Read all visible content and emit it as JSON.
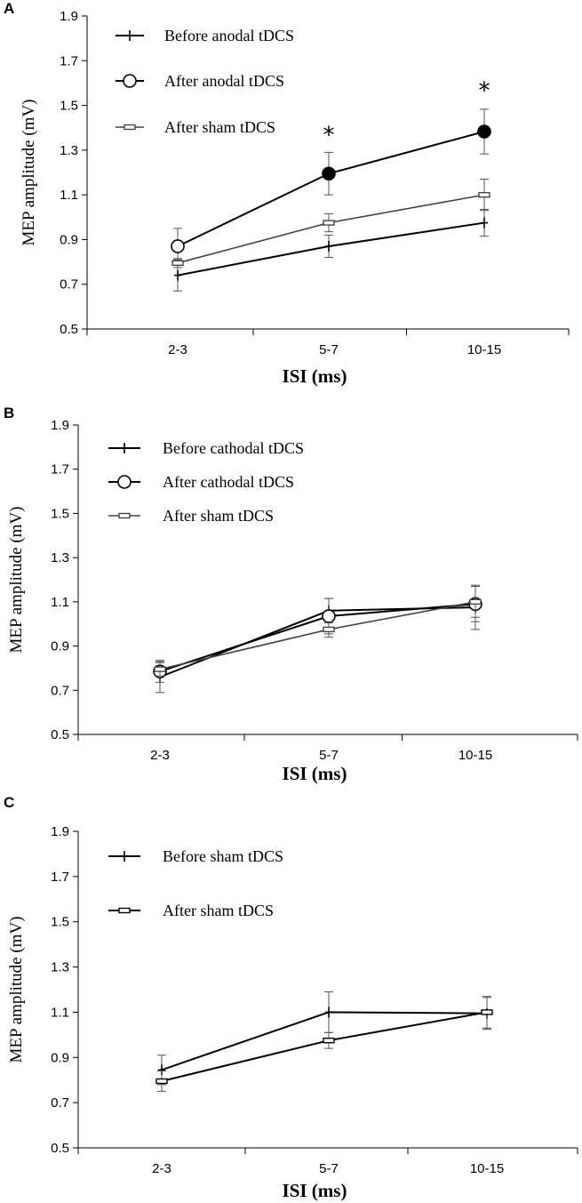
{
  "chart_data": [
    {
      "panel": "A",
      "type": "line",
      "categories": [
        "2-3",
        "5-7",
        "10-15"
      ],
      "xlabel": "ISI (ms)",
      "ylabel": "MEP amplitude (mV)",
      "ylim": [
        0.5,
        1.9
      ],
      "yticks": [
        "0.5",
        "0.7",
        "0.9",
        "1.1",
        "1.3",
        "1.5",
        "1.7",
        "1.9"
      ],
      "grid": false,
      "legend_position": "top-left",
      "series": [
        {
          "name": "Before anodal tDCS",
          "marker": "plus",
          "color": "#000000",
          "values": [
            0.74,
            0.87,
            0.975
          ],
          "errors": [
            0.07,
            0.05,
            0.06
          ]
        },
        {
          "name": "After anodal tDCS",
          "marker": "circle",
          "color": "#000000",
          "values": [
            0.87,
            1.195,
            1.383
          ],
          "errors": [
            0.08,
            0.095,
            0.1
          ],
          "filled_points": [
            false,
            true,
            true
          ]
        },
        {
          "name": "After sham tDCS",
          "marker": "dash",
          "color": "#444444",
          "values": [
            0.795,
            0.975,
            1.1
          ],
          "errors": [
            0.02,
            0.04,
            0.07
          ]
        }
      ],
      "annotations": [
        {
          "text": "*",
          "category": "5-7",
          "y": 1.38
        },
        {
          "text": "*",
          "category": "10-15",
          "y": 1.58
        }
      ]
    },
    {
      "panel": "B",
      "type": "line",
      "categories": [
        "2-3",
        "5-7",
        "10-15"
      ],
      "xlabel": "ISI (ms)",
      "ylabel": "MEP amplitude (mV)",
      "ylim": [
        0.5,
        1.9
      ],
      "yticks": [
        "0.5",
        "0.7",
        "0.9",
        "1.1",
        "1.3",
        "1.5",
        "1.7",
        "1.9"
      ],
      "grid": false,
      "legend_position": "top-left",
      "series": [
        {
          "name": "Before cathodal tDCS",
          "marker": "plus",
          "color": "#000000",
          "values": [
            0.76,
            1.06,
            1.075
          ],
          "errors": [
            0.07,
            0.055,
            0.1
          ]
        },
        {
          "name": "After cathodal tDCS",
          "marker": "circle",
          "color": "#000000",
          "values": [
            0.785,
            1.035,
            1.09
          ],
          "errors": [
            0.05,
            0.08,
            0.08
          ],
          "filled_points": [
            false,
            false,
            false
          ]
        },
        {
          "name": "After sham tDCS",
          "marker": "dash",
          "color": "#444444",
          "values": [
            0.795,
            0.975,
            1.1
          ],
          "errors": [
            0.03,
            0.035,
            0.07
          ]
        }
      ],
      "annotations": []
    },
    {
      "panel": "C",
      "type": "line",
      "categories": [
        "2-3",
        "5-7",
        "10-15"
      ],
      "xlabel": "ISI (ms)",
      "ylabel": "MEP amplitude (mV)",
      "ylim": [
        0.5,
        1.9
      ],
      "yticks": [
        "0.5",
        "0.7",
        "0.9",
        "1.1",
        "1.3",
        "1.5",
        "1.7",
        "1.9"
      ],
      "grid": false,
      "legend_position": "top-left",
      "series": [
        {
          "name": "Before sham tDCS",
          "marker": "plus",
          "color": "#000000",
          "values": [
            0.845,
            1.1,
            1.095
          ],
          "errors": [
            0.065,
            0.09,
            0.07
          ]
        },
        {
          "name": "After sham tDCS",
          "marker": "dash",
          "color": "#000000",
          "values": [
            0.795,
            0.975,
            1.1
          ],
          "errors": [
            0.045,
            0.035,
            0.07
          ]
        }
      ],
      "annotations": []
    }
  ]
}
